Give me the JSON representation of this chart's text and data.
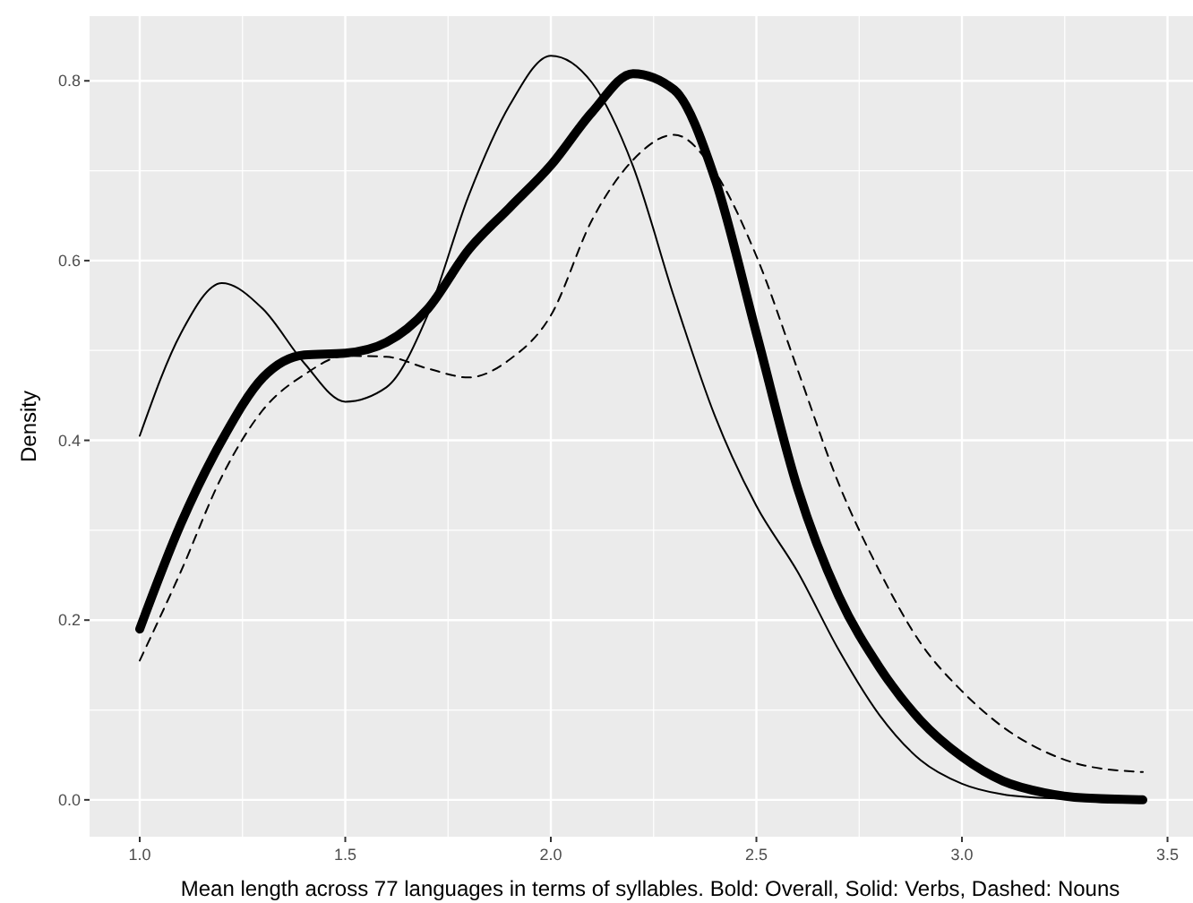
{
  "chart_data": {
    "type": "line",
    "xlabel": "Mean length across 77 languages in terms of syllables. Bold: Overall, Solid: Verbs, Dashed: Nouns",
    "ylabel": "Density",
    "x": [
      1.0,
      1.1,
      1.2,
      1.3,
      1.4,
      1.5,
      1.6,
      1.7,
      1.8,
      1.9,
      2.0,
      2.1,
      2.2,
      2.3,
      2.4,
      2.5,
      2.6,
      2.7,
      2.8,
      2.9,
      3.0,
      3.1,
      3.2,
      3.3,
      3.44
    ],
    "series": [
      {
        "color": "#000000",
        "line_style": "solid",
        "values": [
          0.19,
          0.307,
          0.4,
          0.47,
          0.495,
          0.497,
          0.509,
          0.546,
          0.612,
          0.659,
          0.706,
          0.765,
          0.808,
          0.79,
          0.69,
          0.519,
          0.347,
          0.227,
          0.147,
          0.088,
          0.048,
          0.021,
          0.008,
          0.002,
          0.0
        ]
      },
      {
        "color": "#000000",
        "line_style": "solid",
        "values": [
          0.405,
          0.519,
          0.575,
          0.546,
          0.486,
          0.443,
          0.459,
          0.539,
          0.672,
          0.773,
          0.828,
          0.798,
          0.705,
          0.559,
          0.426,
          0.327,
          0.254,
          0.167,
          0.094,
          0.044,
          0.018,
          0.006,
          0.002,
          0.001,
          0.0
        ]
      },
      {
        "color": "#000000",
        "line_style": "dashed",
        "values": [
          0.155,
          0.254,
          0.36,
          0.434,
          0.473,
          0.494,
          0.493,
          0.48,
          0.47,
          0.49,
          0.539,
          0.645,
          0.712,
          0.74,
          0.698,
          0.605,
          0.479,
          0.352,
          0.254,
          0.174,
          0.121,
          0.081,
          0.054,
          0.038,
          0.031
        ]
      }
    ],
    "xlim": [
      0.878,
      3.562
    ],
    "ylim": [
      -0.041,
      0.872
    ],
    "xticks": [
      {
        "value": 1,
        "label": "1.0"
      },
      1.5,
      {
        "value": 2,
        "label": "2.0"
      },
      2.5,
      {
        "value": 3,
        "label": "3.0"
      },
      3.5
    ],
    "yticks": [
      {
        "value": 0,
        "label": "0.0"
      },
      0.2,
      0.4,
      0.6,
      0.8
    ],
    "grid": true,
    "marker": "none"
  }
}
